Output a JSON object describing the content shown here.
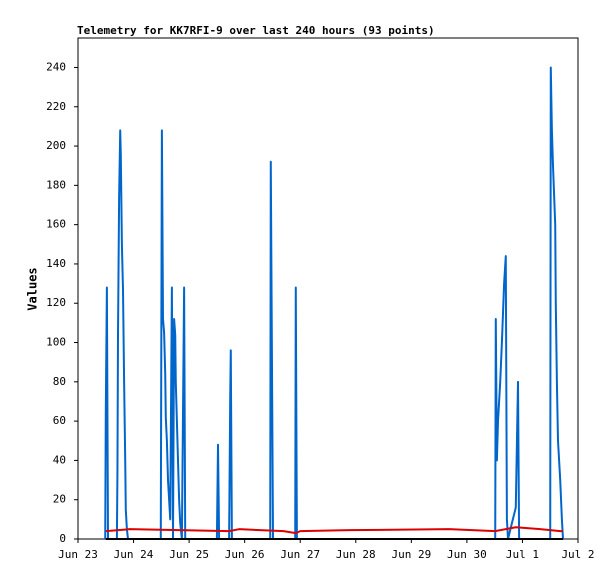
{
  "chart_data": {
    "type": "line",
    "title": "Telemetry for KK7RFI-9 over last 240 hours (93 points)",
    "y_label": "Values",
    "xlim": [
      23,
      32
    ],
    "xticks": [
      {
        "value": 23,
        "label": "Jun 23"
      },
      {
        "value": 24,
        "label": "Jun 24"
      },
      {
        "value": 25,
        "label": "Jun 25"
      },
      {
        "value": 26,
        "label": "Jun 26"
      },
      {
        "value": 27,
        "label": "Jun 27"
      },
      {
        "value": 28,
        "label": "Jun 28"
      },
      {
        "value": 29,
        "label": "Jun 29"
      },
      {
        "value": 30,
        "label": "Jun 30"
      },
      {
        "value": 31,
        "label": "Jul 1"
      },
      {
        "value": 32,
        "label": "Jul 2"
      }
    ],
    "ylim": [
      0,
      255
    ],
    "yticks": [
      0,
      20,
      40,
      60,
      80,
      100,
      120,
      140,
      160,
      180,
      200,
      220,
      240
    ],
    "series": [
      {
        "color": "#0066cc",
        "x": [
          23.49,
          23.5,
          23.52,
          23.54,
          23.7,
          23.71,
          23.72,
          23.74,
          23.76,
          23.77,
          23.79,
          23.81,
          23.83,
          23.85,
          23.86,
          23.88,
          23.9,
          24.49,
          24.51,
          24.53,
          24.55,
          24.57,
          24.58,
          24.6,
          24.62,
          24.66,
          24.69,
          24.71,
          24.73,
          24.75,
          24.76,
          24.78,
          24.8,
          24.82,
          24.84,
          24.87,
          24.91,
          24.93,
          25.5,
          25.52,
          25.54,
          25.72,
          25.74,
          25.75,
          25.77,
          26.46,
          26.47,
          26.49,
          26.51,
          26.91,
          26.92,
          26.94,
          30.51,
          30.52,
          30.54,
          30.56,
          30.6,
          30.63,
          30.67,
          30.7,
          30.72,
          30.74,
          30.81,
          30.88,
          30.92,
          30.94,
          31.5,
          31.51,
          31.53,
          31.55,
          31.59,
          31.6,
          31.62,
          31.64,
          31.68,
          31.71,
          31.73
        ],
        "values": [
          0,
          64,
          128,
          0,
          0,
          34,
          104,
          174,
          208,
          196,
          150,
          127,
          80,
          40,
          15,
          5,
          0,
          0,
          208,
          112,
          105,
          84,
          62,
          50,
          30,
          10,
          128,
          0,
          112,
          104,
          80,
          60,
          40,
          20,
          8,
          0,
          128,
          0,
          0,
          48,
          0,
          0,
          72,
          96,
          0,
          0,
          192,
          96,
          0,
          0,
          128,
          0,
          0,
          112,
          40,
          60,
          80,
          100,
          130,
          144,
          10,
          0,
          8,
          16,
          80,
          0,
          0,
          240,
          208,
          190,
          160,
          120,
          80,
          50,
          30,
          10,
          0
        ]
      },
      {
        "color": "#dd0000",
        "x": [
          23.5,
          23.93,
          25.72,
          25.9,
          26.7,
          26.92,
          27.0,
          27.88,
          29.68,
          30.51,
          30.88,
          31.32,
          31.68,
          31.73
        ],
        "values": [
          4,
          5,
          4,
          5,
          4,
          3,
          4,
          4.5,
          5,
          4,
          6,
          5,
          4,
          4
        ]
      },
      {
        "color": "#000000",
        "x": [
          23.5,
          31.73
        ],
        "values": [
          0,
          0
        ]
      }
    ]
  }
}
